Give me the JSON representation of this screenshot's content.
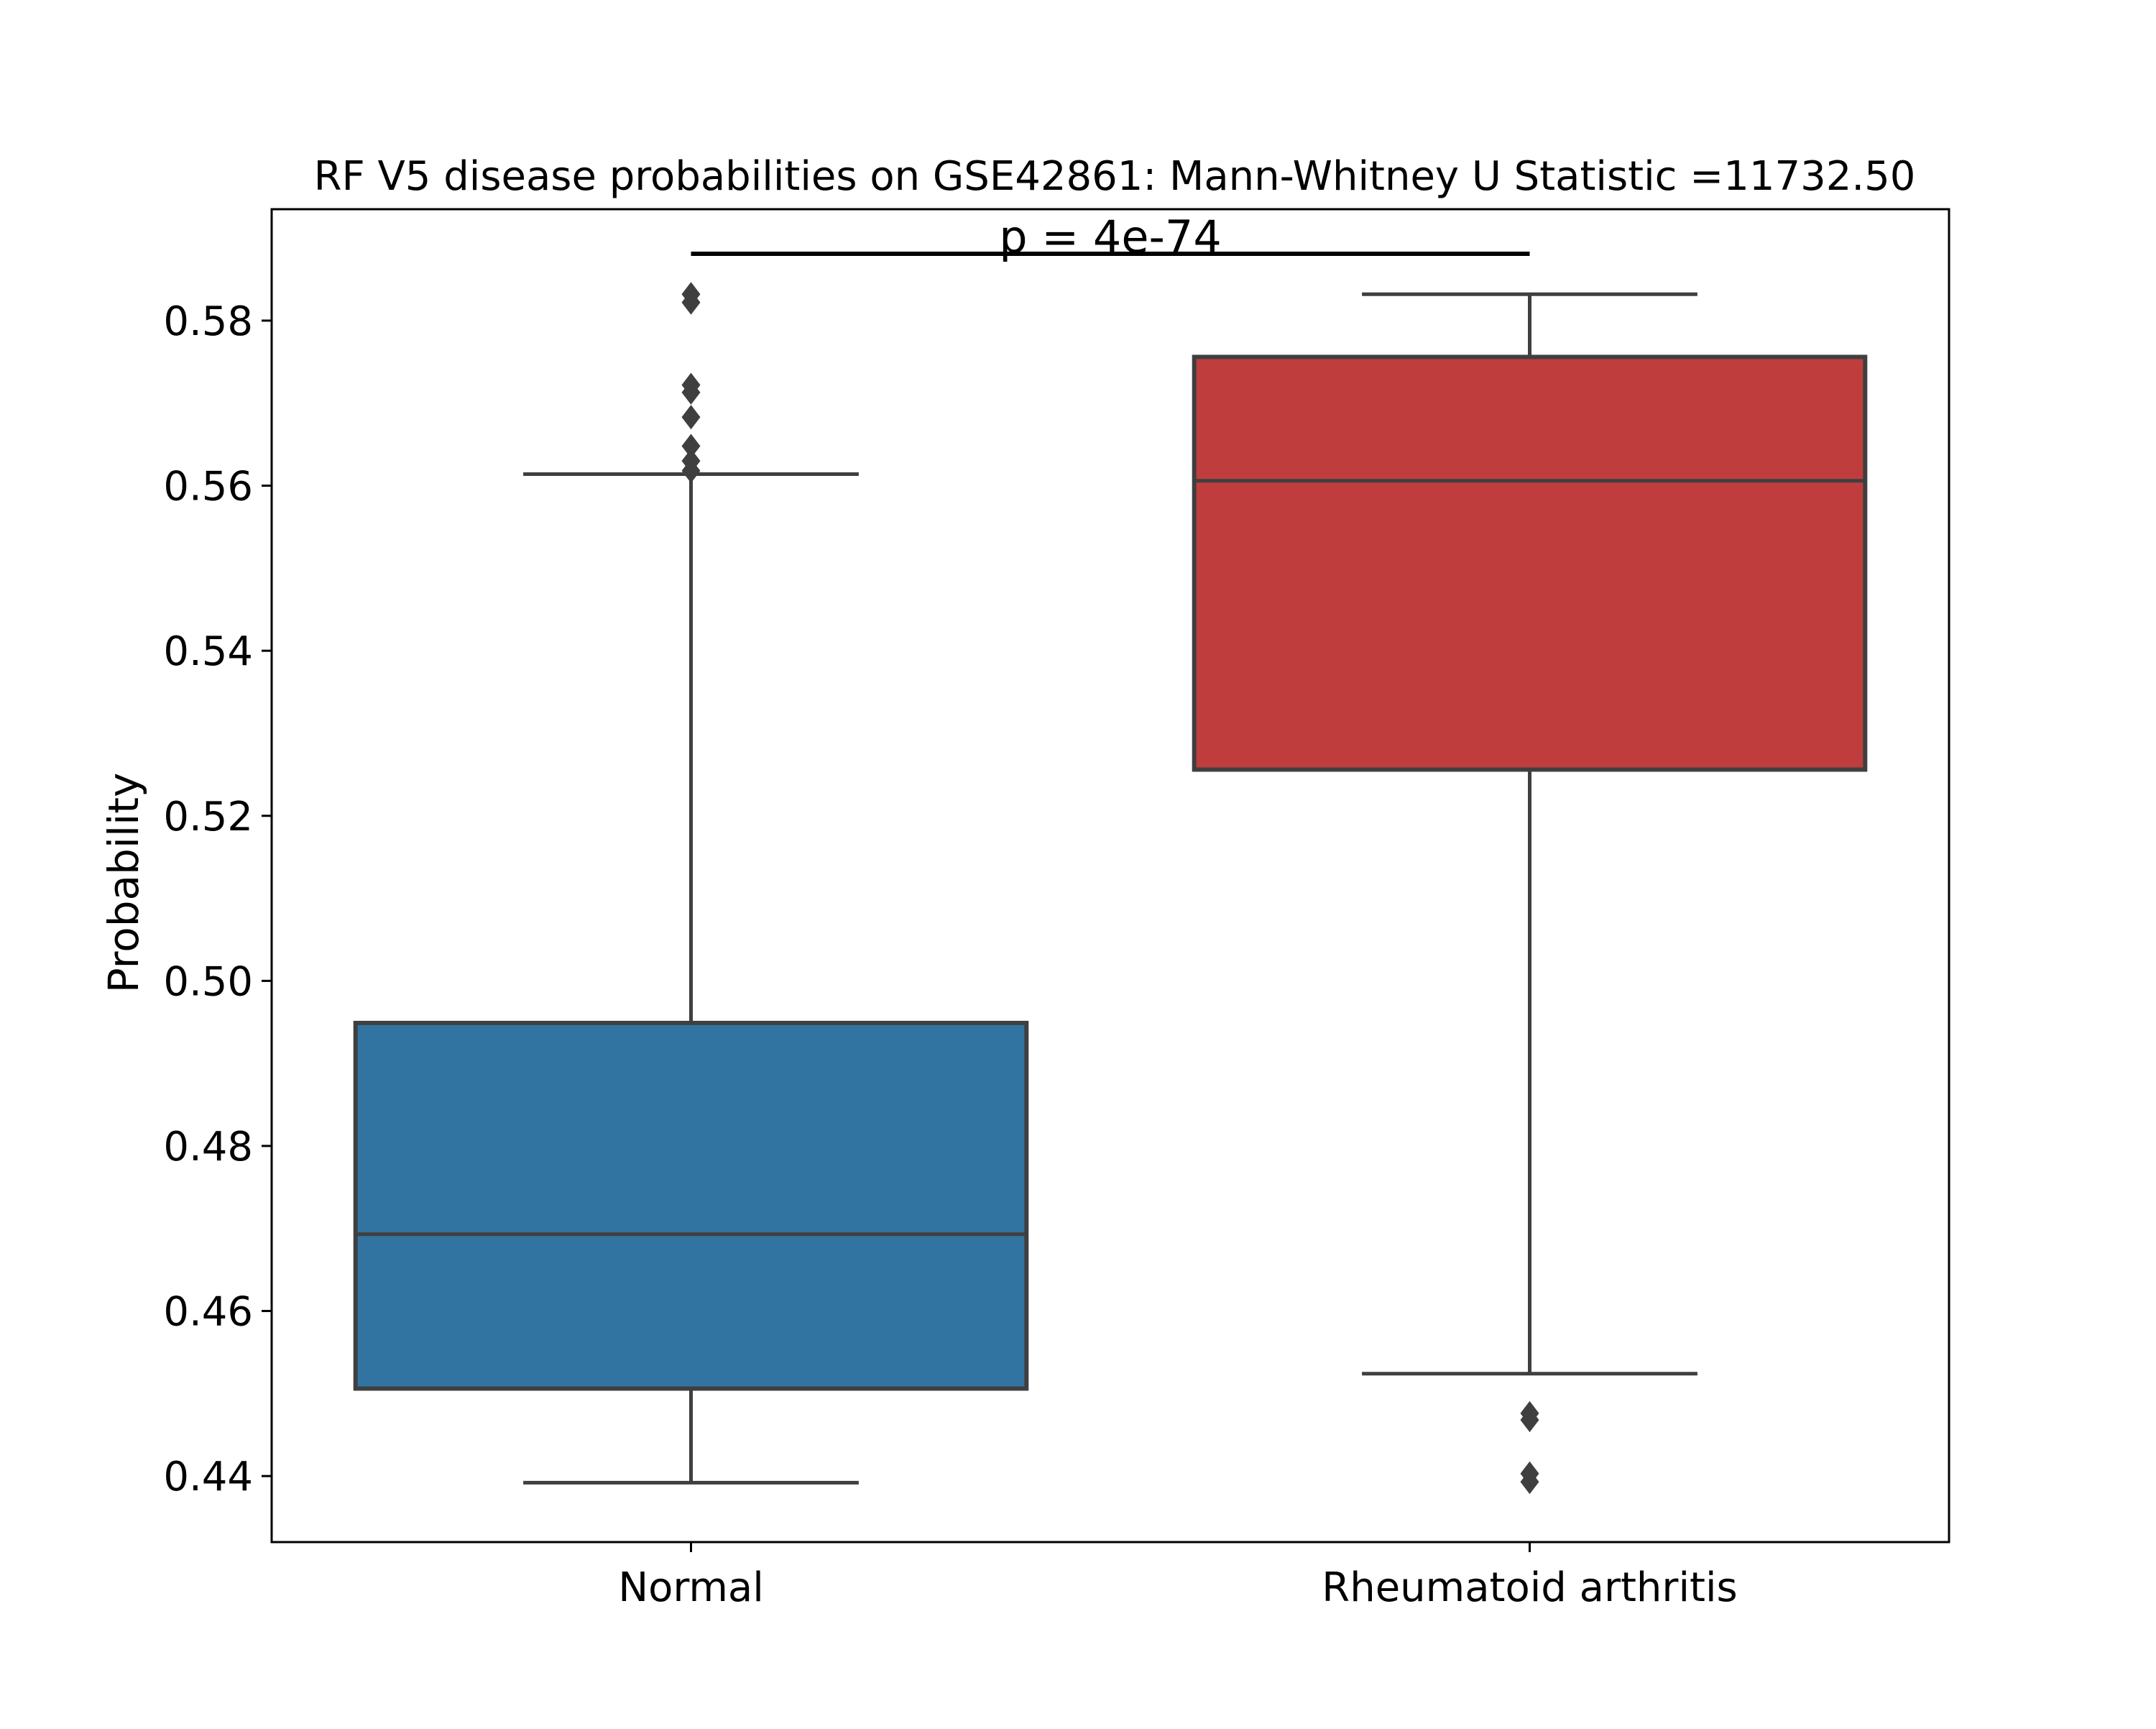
{
  "chart_data": {
    "type": "box",
    "title": "RF V5 disease probabilities on GSE42861: Mann-Whitney U Statistic =11732.50",
    "xlabel": "",
    "ylabel": "Probability",
    "ylim": [
      0.432,
      0.5935
    ],
    "yticks": [
      0.44,
      0.46,
      0.48,
      0.5,
      0.52,
      0.54,
      0.56,
      0.58
    ],
    "ytick_labels": [
      "0.44",
      "0.46",
      "0.48",
      "0.50",
      "0.52",
      "0.54",
      "0.56",
      "0.58"
    ],
    "categories": [
      "Normal",
      "Rheumatoid arthritis"
    ],
    "colors": {
      "Normal": "#3274a1",
      "Rheumatoid arthritis": "#c03d3e",
      "edge": "#3f3f3f"
    },
    "boxes": [
      {
        "category": "Normal",
        "whisker_low": 0.4392,
        "q1": 0.4506,
        "median": 0.4693,
        "q3": 0.4949,
        "whisker_high": 0.5614,
        "outliers": [
          0.5618,
          0.563,
          0.5648,
          0.5683,
          0.5713,
          0.5722,
          0.5822,
          0.5832
        ]
      },
      {
        "category": "Rheumatoid arthritis",
        "whisker_low": 0.4524,
        "q1": 0.5256,
        "median": 0.5606,
        "q3": 0.5756,
        "whisker_high": 0.5832,
        "outliers": [
          0.4468,
          0.4476,
          0.4403,
          0.4393
        ]
      }
    ],
    "annotation": {
      "text": "p = 4e-74",
      "y": 0.5881,
      "from": "Normal",
      "to": "Rheumatoid arthritis"
    },
    "grid": false,
    "legend": "none"
  }
}
